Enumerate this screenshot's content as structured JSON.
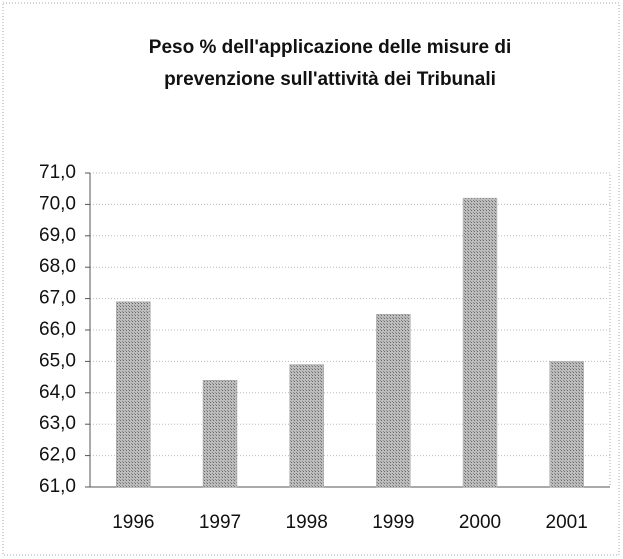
{
  "chart_data": {
    "type": "bar",
    "title": [
      "Peso % dell'applicazione delle misure di",
      "prevenzione sull'attività dei Tribunali"
    ],
    "categories": [
      "1996",
      "1997",
      "1998",
      "1999",
      "2000",
      "2001"
    ],
    "values": [
      66.9,
      64.4,
      64.9,
      66.5,
      70.2,
      65.0
    ],
    "color": "#a9a9a9",
    "ylim": [
      61,
      71
    ],
    "yticks": [
      {
        "value": 61,
        "label": "61,0"
      },
      {
        "value": 62,
        "label": "62,0"
      },
      {
        "value": 63,
        "label": "63,0"
      },
      {
        "value": 64,
        "label": "64,0"
      },
      {
        "value": 65,
        "label": "65,0"
      },
      {
        "value": 66,
        "label": "66,0"
      },
      {
        "value": 67,
        "label": "67,0"
      },
      {
        "value": 68,
        "label": "68,0"
      },
      {
        "value": 69,
        "label": "69,0"
      },
      {
        "value": 70,
        "label": "70,0"
      },
      {
        "value": 71,
        "label": "71,0"
      }
    ],
    "grid": true
  }
}
